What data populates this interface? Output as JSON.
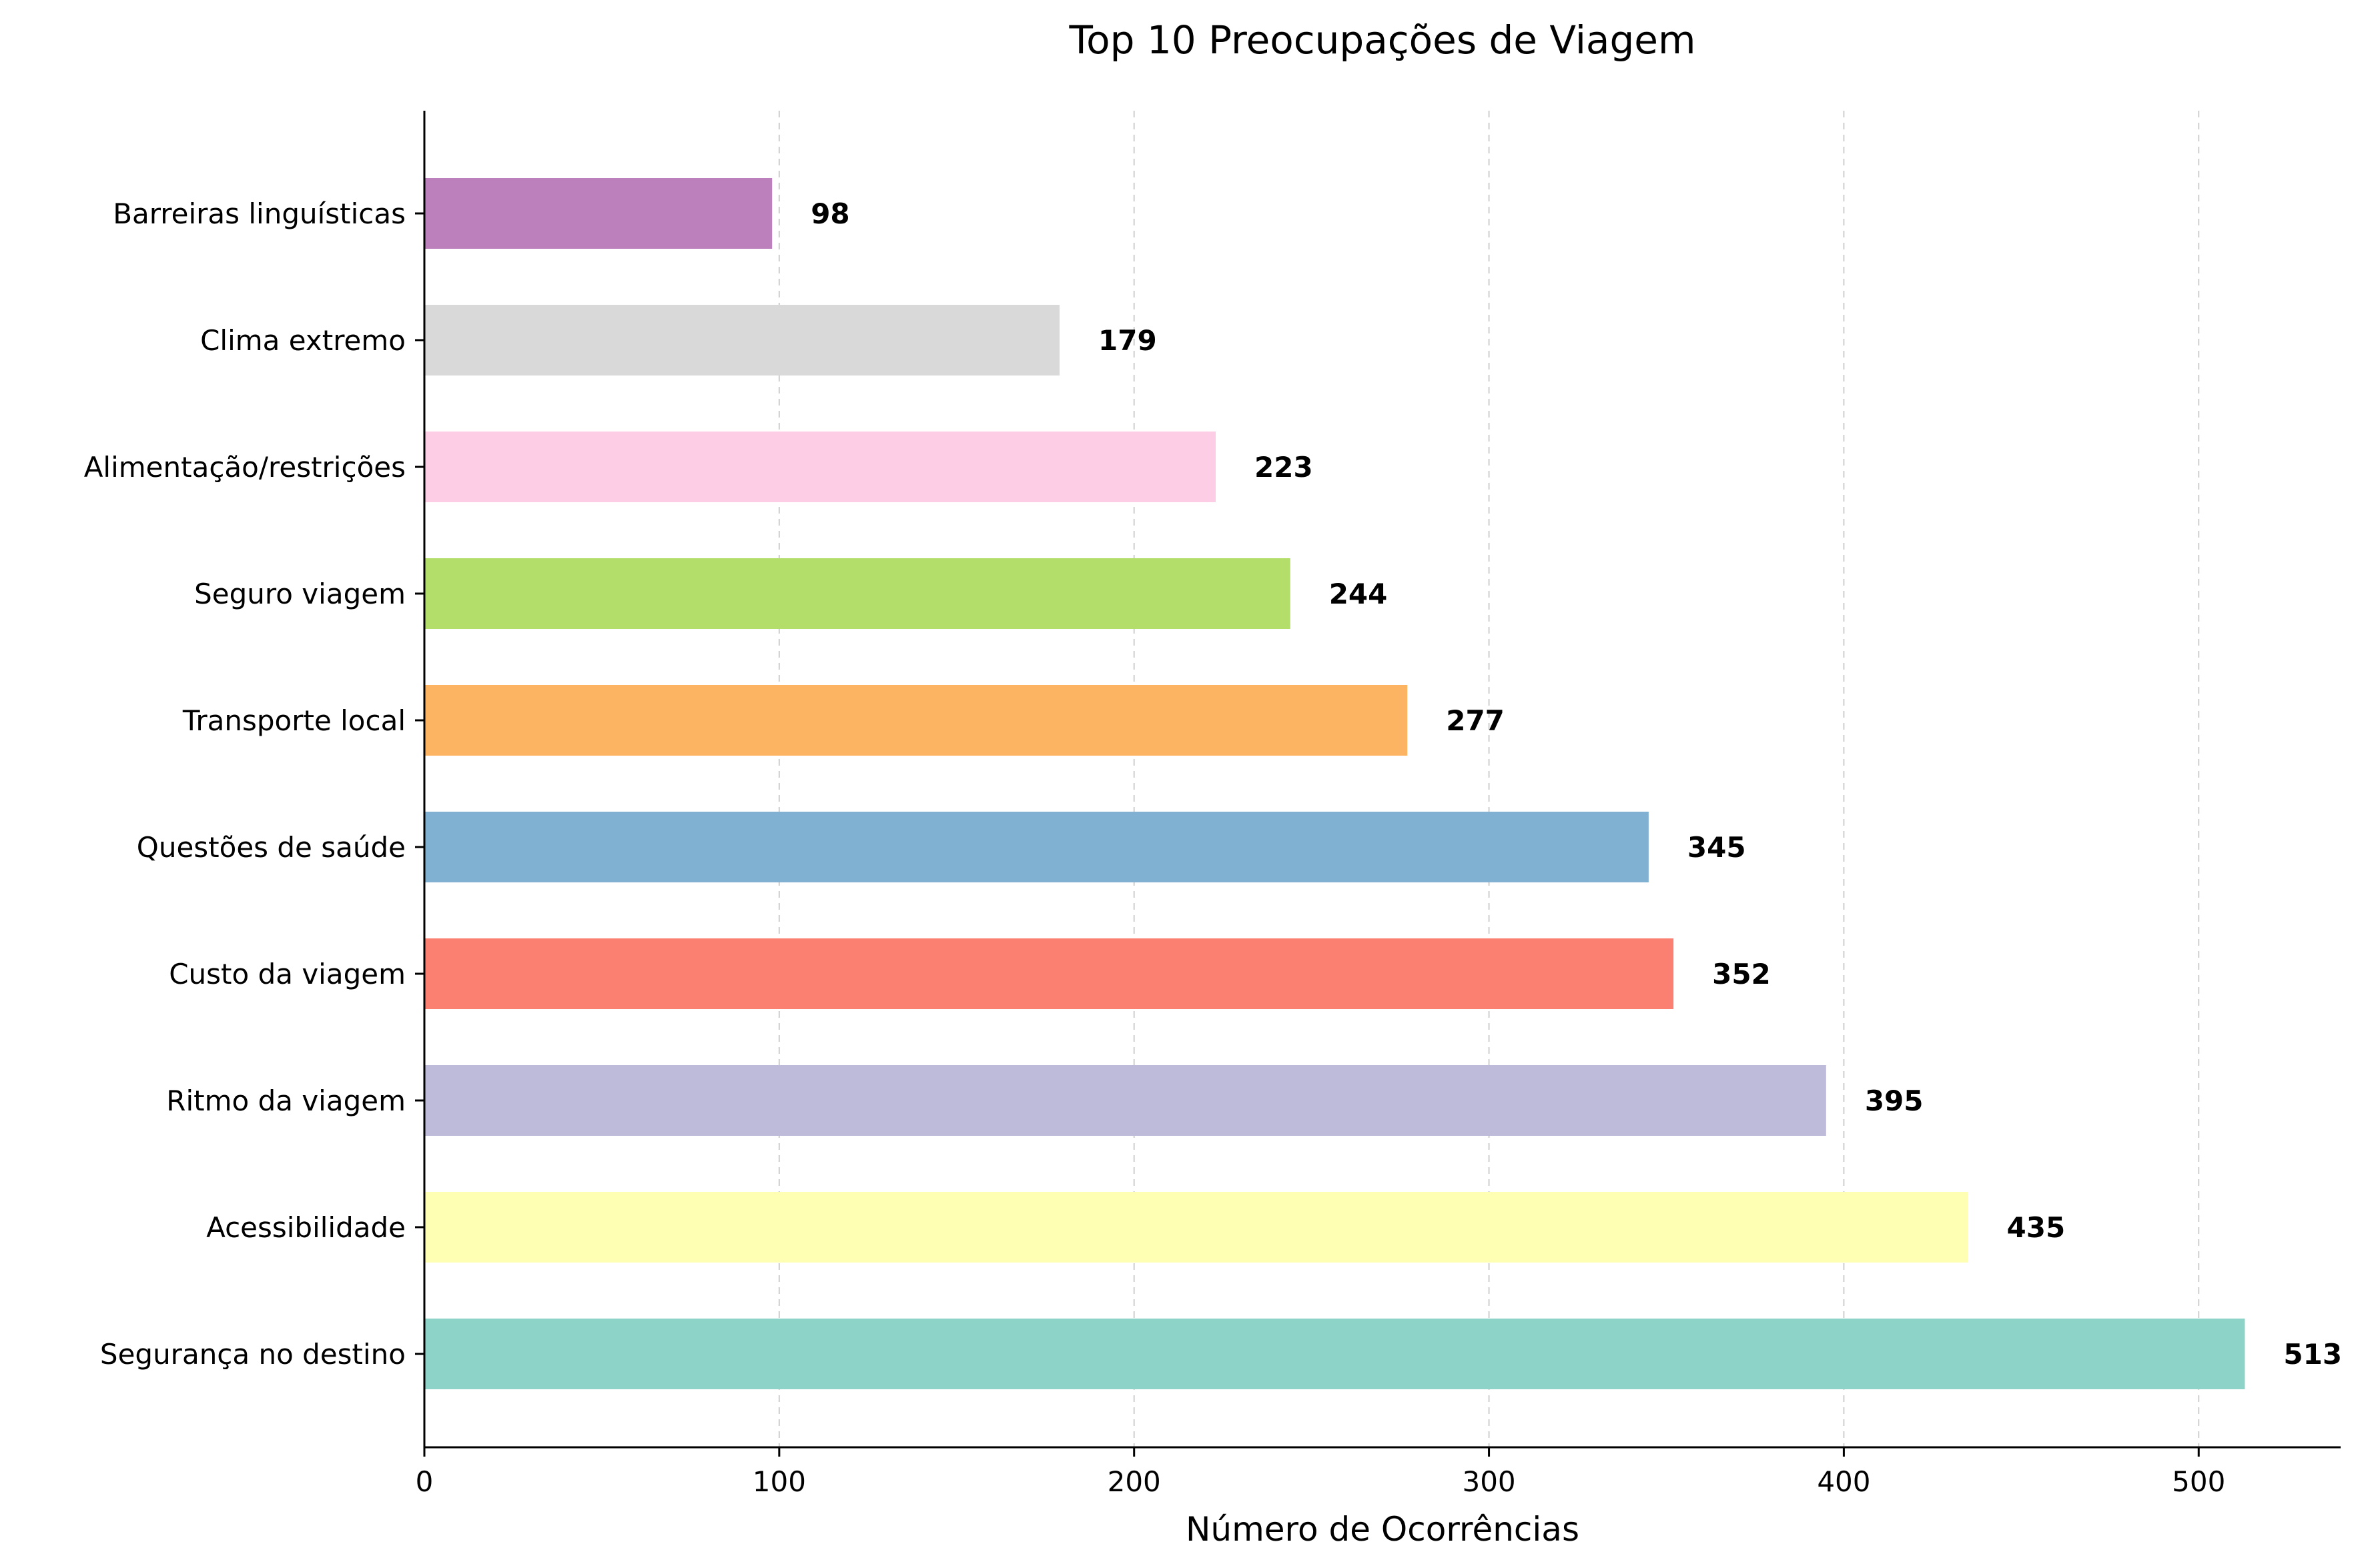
{
  "chart_data": {
    "type": "bar",
    "orientation": "horizontal",
    "title": "Top 10 Preocupações de Viagem",
    "xlabel": "Número de Ocorrências",
    "ylabel": "",
    "xlim": [
      0,
      540
    ],
    "xticks": [
      0,
      100,
      200,
      300,
      400,
      500
    ],
    "grid": "x-dashed",
    "categories": [
      "Segurança no destino",
      "Acessibilidade",
      "Ritmo da viagem",
      "Custo da viagem",
      "Questões de saúde",
      "Transporte local",
      "Seguro viagem",
      "Alimentação/restrições",
      "Clima extremo",
      "Barreiras linguísticas"
    ],
    "values": [
      513,
      435,
      395,
      352,
      345,
      277,
      244,
      223,
      179,
      98
    ],
    "colors": [
      "#8dd3c7",
      "#ffffb3",
      "#bebada",
      "#fb8072",
      "#80b1d3",
      "#fdb462",
      "#b3de69",
      "#fccde5",
      "#d9d9d9",
      "#bc80bd"
    ]
  }
}
